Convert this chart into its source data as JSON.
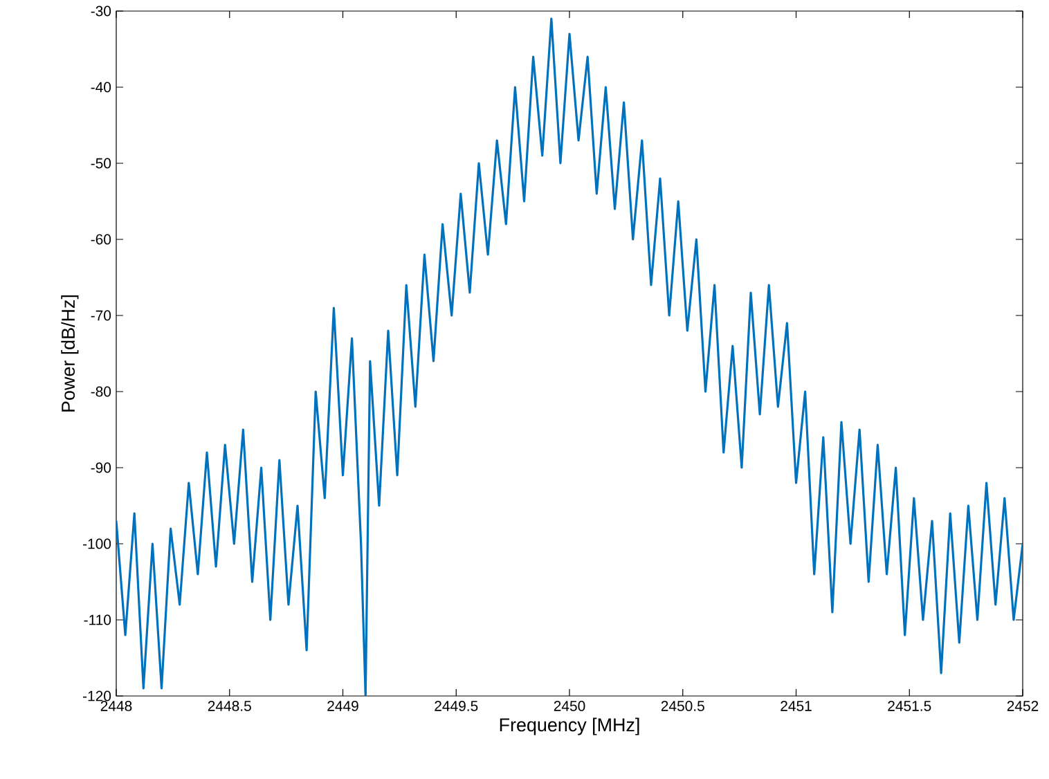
{
  "chart_data": {
    "type": "line",
    "xlabel": "Frequency [MHz]",
    "ylabel": "Power [dB/Hz]",
    "xlim": [
      2448,
      2452
    ],
    "ylim": [
      -120,
      -30
    ],
    "xticks": [
      2448,
      2448.5,
      2449,
      2449.5,
      2450,
      2450.5,
      2451,
      2451.5,
      2452
    ],
    "yticks": [
      -120,
      -110,
      -100,
      -90,
      -80,
      -70,
      -60,
      -50,
      -40,
      -30
    ],
    "line_style": "solid",
    "series": [
      {
        "color": "#0072bd",
        "x": [
          2448.0,
          2448.04,
          2448.08,
          2448.12,
          2448.16,
          2448.2,
          2448.24,
          2448.28,
          2448.32,
          2448.36,
          2448.4,
          2448.44,
          2448.48,
          2448.52,
          2448.56,
          2448.6,
          2448.64,
          2448.68,
          2448.72,
          2448.76,
          2448.8,
          2448.84,
          2448.88,
          2448.92,
          2448.96,
          2449.0,
          2449.04,
          2449.08,
          2449.1,
          2449.12,
          2449.16,
          2449.2,
          2449.24,
          2449.28,
          2449.32,
          2449.36,
          2449.4,
          2449.44,
          2449.48,
          2449.52,
          2449.56,
          2449.6,
          2449.64,
          2449.68,
          2449.72,
          2449.76,
          2449.8,
          2449.84,
          2449.88,
          2449.92,
          2449.96,
          2450.0,
          2450.04,
          2450.08,
          2450.12,
          2450.16,
          2450.2,
          2450.24,
          2450.28,
          2450.32,
          2450.36,
          2450.4,
          2450.44,
          2450.48,
          2450.52,
          2450.56,
          2450.6,
          2450.64,
          2450.68,
          2450.72,
          2450.76,
          2450.8,
          2450.84,
          2450.88,
          2450.92,
          2450.96,
          2451.0,
          2451.04,
          2451.08,
          2451.12,
          2451.16,
          2451.2,
          2451.24,
          2451.28,
          2451.32,
          2451.36,
          2451.4,
          2451.44,
          2451.48,
          2451.52,
          2451.56,
          2451.6,
          2451.64,
          2451.68,
          2451.72,
          2451.76,
          2451.8,
          2451.84,
          2451.88,
          2451.92,
          2451.96,
          2452.0
        ],
        "values": [
          -97,
          -112,
          -96,
          -119,
          -100,
          -119,
          -98,
          -108,
          -92,
          -104,
          -88,
          -103,
          -87,
          -100,
          -85,
          -105,
          -90,
          -110,
          -89,
          -108,
          -95,
          -114,
          -80,
          -94,
          -69,
          -91,
          -73,
          -100,
          -120,
          -76,
          -95,
          -72,
          -91,
          -66,
          -82,
          -62,
          -76,
          -58,
          -70,
          -54,
          -67,
          -50,
          -62,
          -47,
          -58,
          -40,
          -55,
          -36,
          -49,
          -31,
          -50,
          -33,
          -47,
          -36,
          -54,
          -40,
          -56,
          -42,
          -60,
          -47,
          -66,
          -52,
          -70,
          -55,
          -72,
          -60,
          -80,
          -66,
          -88,
          -74,
          -90,
          -67,
          -83,
          -66,
          -82,
          -71,
          -92,
          -80,
          -104,
          -86,
          -109,
          -84,
          -100,
          -85,
          -105,
          -87,
          -104,
          -90,
          -112,
          -94,
          -110,
          -97,
          -117,
          -96,
          -113,
          -95,
          -110,
          -92,
          -108,
          -94,
          -110,
          -100
        ]
      }
    ]
  }
}
